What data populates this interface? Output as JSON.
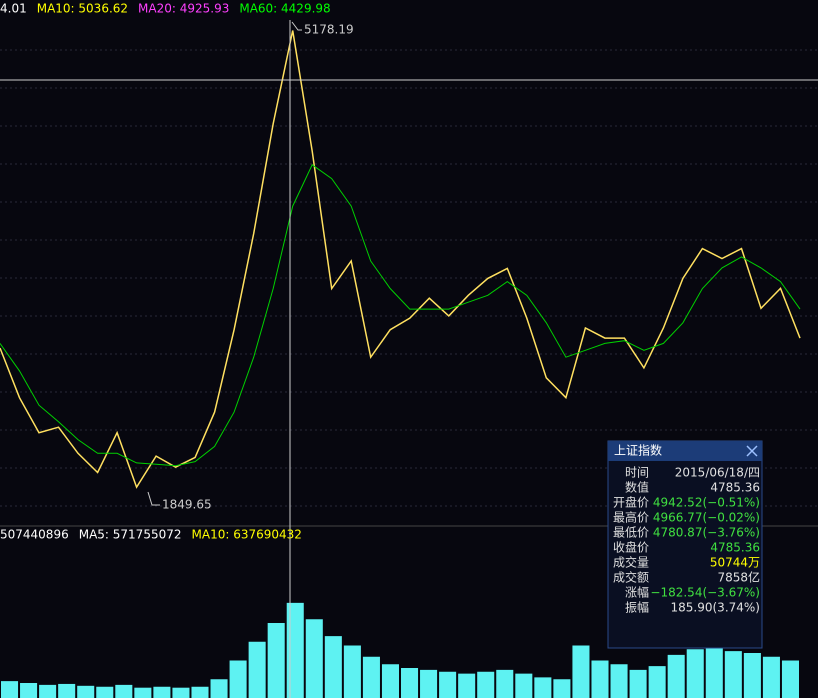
{
  "chart_data": [
    {
      "type": "line",
      "legend": [
        {
          "text": "4.01",
          "color": "#ffffff"
        },
        {
          "text": "MA10: 5036.62",
          "color": "#ffff00"
        },
        {
          "text": "MA20: 4925.93",
          "color": "#ff40ff"
        },
        {
          "text": "MA60: 4429.98",
          "color": "#00ff00"
        }
      ],
      "annotations": [
        "5178.19",
        "1849.65"
      ],
      "ylim": [
        1600,
        5400
      ],
      "series": [
        {
          "color": "#ffe060",
          "values": [
            2867,
            2505,
            2250,
            2290,
            2100,
            1960,
            2250,
            1853,
            2080,
            2000,
            2070,
            2400,
            3000,
            3700,
            4500,
            5178,
            4300,
            3300,
            3500,
            2800,
            3000,
            3084,
            3229,
            3100,
            3250,
            3373,
            3446,
            3084,
            2650,
            2505,
            3012,
            2939,
            2939,
            2722,
            3012,
            3373,
            3590,
            3518,
            3590,
            3156,
            3301,
            2939
          ]
        },
        {
          "color": "#00d000",
          "values": [
            2900,
            2700,
            2450,
            2330,
            2200,
            2100,
            2100,
            2030,
            2020,
            2010,
            2040,
            2150,
            2400,
            2800,
            3300,
            3900,
            4200,
            4100,
            3900,
            3500,
            3300,
            3150,
            3150,
            3150,
            3200,
            3250,
            3350,
            3250,
            3050,
            2800,
            2850,
            2900,
            2920,
            2850,
            2900,
            3050,
            3300,
            3450,
            3530,
            3450,
            3350,
            3150
          ]
        }
      ]
    },
    {
      "type": "bar",
      "legend": [
        {
          "text": "507440896",
          "color": "#ffffff"
        },
        {
          "text": "MA5: 571755072",
          "color": "#ffffff"
        },
        {
          "text": "MA10: 637690432",
          "color": "#ffff00"
        }
      ],
      "color": "#5ef2f2",
      "ylim": [
        0,
        800000000
      ],
      "values": [
        90000000,
        80000000,
        70000000,
        75000000,
        65000000,
        60000000,
        70000000,
        55000000,
        60000000,
        55000000,
        60000000,
        100000000,
        200000000,
        300000000,
        400000000,
        507440896,
        420000000,
        330000000,
        280000000,
        220000000,
        180000000,
        160000000,
        150000000,
        140000000,
        130000000,
        140000000,
        150000000,
        130000000,
        110000000,
        100000000,
        280000000,
        200000000,
        180000000,
        150000000,
        170000000,
        230000000,
        260000000,
        270000000,
        250000000,
        240000000,
        220000000,
        200000000
      ]
    }
  ],
  "tooltip": {
    "title": "上证指数",
    "rows": [
      {
        "label": "时间",
        "value": "2015/06/18/四",
        "color": "#e0e0e0"
      },
      {
        "label": "数值",
        "value": "4785.36",
        "color": "#e0e0e0"
      },
      {
        "label": "开盘价",
        "value": "4942.52(−0.51%)",
        "color": "#40e040"
      },
      {
        "label": "最高价",
        "value": "4966.77(−0.02%)",
        "color": "#40e040"
      },
      {
        "label": "最低价",
        "value": "4780.87(−3.76%)",
        "color": "#40e040"
      },
      {
        "label": "收盘价",
        "value": "4785.36",
        "color": "#40e040"
      },
      {
        "label": "成交量",
        "value": "50744万",
        "color": "#ffff00"
      },
      {
        "label": "成交额",
        "value": "7858亿",
        "color": "#e0e0e0"
      },
      {
        "label": "涨幅",
        "value": "−182.54(−3.67%)",
        "color": "#40e040"
      },
      {
        "label": "振幅",
        "value": "185.90(3.74%)",
        "color": "#e0e0e0"
      }
    ]
  }
}
